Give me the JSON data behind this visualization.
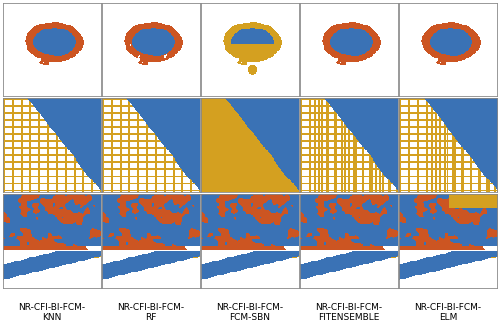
{
  "labels": [
    "NR-CFI-BI-FCM-\nKNN",
    "NR-CFI-BI-FCM-\nRF",
    "NR-CFI-BI-FCM-\nFCM-SBN",
    "NR-CFI-BI-FCM-\nFITENSEMBLE",
    "NR-CFI-BI-FCM-\nELM"
  ],
  "n_cols": 5,
  "n_rows": 3,
  "blue": "#3a72b5",
  "orange": "#cc5522",
  "yellow": "#d4a020",
  "white": "#ffffff",
  "border_color": "#888888",
  "label_fontsize": 6.5,
  "figsize": [
    5.0,
    3.34
  ],
  "dpi": 100
}
